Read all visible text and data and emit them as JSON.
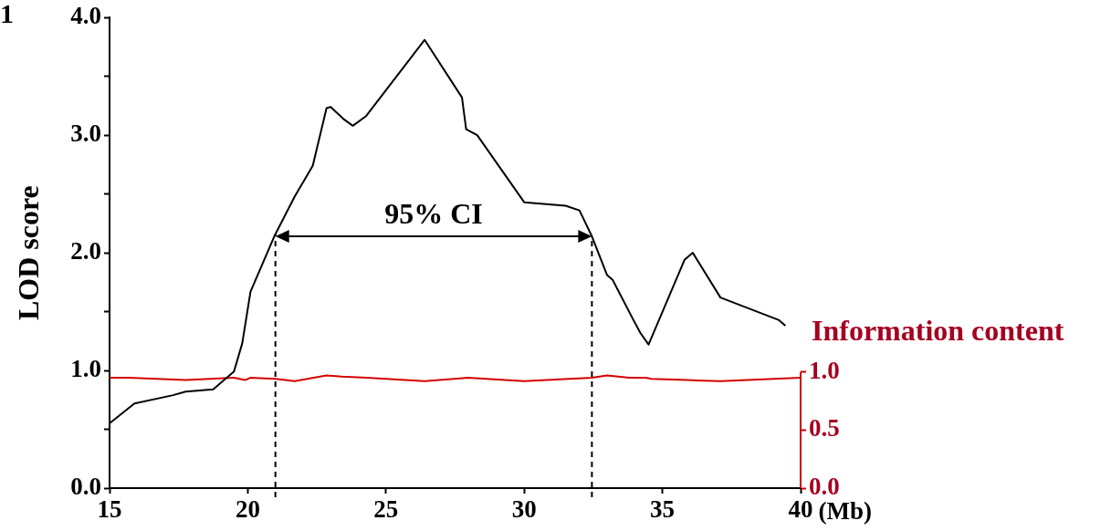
{
  "chart_data": {
    "type": "line",
    "ylabel": "LOD score",
    "xlabel": "(Mb)",
    "y2label": "Information content",
    "xlim": [
      15,
      40
    ],
    "xticks": [
      15,
      20,
      25,
      30,
      35,
      40
    ],
    "ylim": [
      0,
      4
    ],
    "yticks": [
      {
        "value": 0,
        "label": "0.0"
      },
      {
        "value": 0.5,
        "label": null
      },
      {
        "value": 1,
        "label": "1.0"
      },
      {
        "value": 1.5,
        "label": null
      },
      {
        "value": 2,
        "label": "2.0"
      },
      {
        "value": 2.5,
        "label": null
      },
      {
        "value": 3,
        "label": "3.0"
      },
      {
        "value": 3.5,
        "label": null
      },
      {
        "value": 4,
        "label": "4.0"
      }
    ],
    "y2lim": [
      0,
      4.05
    ],
    "y2ticks": [
      {
        "value": 0,
        "label": "0.0"
      },
      {
        "value": 0.5,
        "label": "0.5"
      },
      {
        "value": 1,
        "label": "1.0"
      }
    ],
    "grid": false,
    "legend": false,
    "marker": "none",
    "series": [
      {
        "color": "#000000",
        "x": [
          15,
          15.9,
          17.3,
          17.75,
          18.75,
          19.5,
          19.8,
          20.1,
          20.96,
          21.7,
          22.35,
          22.85,
          23.0,
          23.45,
          23.8,
          24.27,
          26.4,
          27.75,
          27.9,
          28.3,
          30.0,
          31.5,
          32.0,
          32.45,
          33.0,
          33.2,
          33.95,
          34.2,
          34.5,
          35.8,
          36.1,
          37.1,
          39.2,
          39.45
        ],
        "values": [
          0.55,
          0.72,
          0.79,
          0.82,
          0.84,
          0.99,
          1.23,
          1.67,
          2.14,
          2.48,
          2.74,
          3.23,
          3.24,
          3.14,
          3.08,
          3.16,
          3.81,
          3.32,
          3.05,
          3.0,
          2.43,
          2.4,
          2.36,
          2.14,
          1.81,
          1.77,
          1.43,
          1.32,
          1.22,
          1.94,
          2.0,
          1.62,
          1.43,
          1.38
        ]
      },
      {
        "color": "#d40000",
        "axis": "y2",
        "x": [
          15,
          15.7,
          17.75,
          19.5,
          19.9,
          20.1,
          21,
          21.7,
          22.85,
          23.4,
          24.3,
          26.4,
          27.95,
          30,
          32.45,
          33,
          33.8,
          34.4,
          34.6,
          35.9,
          37.1,
          40
        ],
        "values": [
          0.95,
          0.95,
          0.93,
          0.95,
          0.93,
          0.95,
          0.94,
          0.92,
          0.97,
          0.96,
          0.95,
          0.92,
          0.95,
          0.92,
          0.95,
          0.97,
          0.95,
          0.95,
          0.94,
          0.93,
          0.92,
          0.95
        ]
      }
    ],
    "ref_lines": [
      {
        "axis": "x",
        "value": 21.0,
        "line_style": "dashed",
        "color": "#000000"
      },
      {
        "axis": "x",
        "value": 32.45,
        "line_style": "dashed",
        "color": "#000000"
      }
    ],
    "annotations": [
      "1",
      "95% CI"
    ]
  }
}
